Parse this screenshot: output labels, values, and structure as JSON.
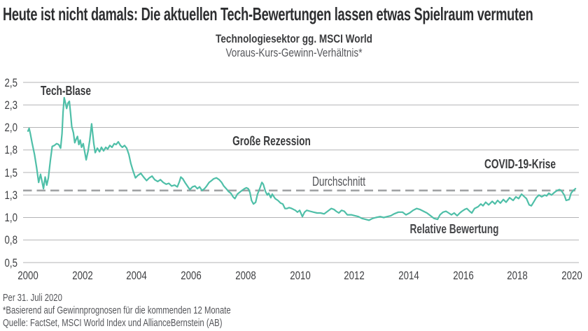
{
  "title": "Heute ist nicht damals: Die aktuellen Tech-Bewertungen lassen etwas Spielraum vermuten",
  "subtitle": {
    "line1": "Technologiesektor gg. MSCI World",
    "line2": "Voraus-Kurs-Gewinn-Verhältnis*"
  },
  "annotations": {
    "tech_bubble": "Tech-Blase",
    "great_recession": "Große Rezession",
    "covid": "COVID-19-Krise",
    "average": "Durchschnitt",
    "series": "Relative Bewertung"
  },
  "footer": {
    "as_of": "Per 31. Juli 2020",
    "note": "*Basierend auf Gewinnprognosen für die kommenden 12 Monate",
    "source": "Quelle: FactSet, MSCI World Index und AllianceBernstein (AB)"
  },
  "colors": {
    "line": "#4FBFA8",
    "grid": "#B3B3B5",
    "dashed": "#A0A2A4",
    "text_dark": "#3A3B3D",
    "text_gray": "#55565A"
  },
  "chart_data": {
    "type": "line",
    "title": "Technologiesektor gg. MSCI World",
    "subtitle": "Voraus-Kurs-Gewinn-Verhältnis (Relative Bewertung)",
    "xlabel": "",
    "ylabel": "",
    "xlim": [
      2000,
      2020.58
    ],
    "ylim": [
      0.5,
      2.5
    ],
    "grid": "horizontal",
    "legend_position": "none",
    "average_value": 1.3,
    "y_ticks": [
      {
        "label": "2,5",
        "value": 2.5
      },
      {
        "label": "2,3",
        "value": 2.25
      },
      {
        "label": "2,0",
        "value": 2.0
      },
      {
        "label": "1,8",
        "value": 1.75
      },
      {
        "label": "1,5",
        "value": 1.5
      },
      {
        "label": "1,3",
        "value": 1.25
      },
      {
        "label": "1,0",
        "value": 1.0
      },
      {
        "label": "0,8",
        "value": 0.75
      },
      {
        "label": "0,5",
        "value": 0.5
      }
    ],
    "x_ticks": [
      {
        "label": "2000",
        "year": 2000
      },
      {
        "label": "2002",
        "year": 2002
      },
      {
        "label": "2004",
        "year": 2004
      },
      {
        "label": "2006",
        "year": 2006
      },
      {
        "label": "2008",
        "year": 2008
      },
      {
        "label": "2010",
        "year": 2010
      },
      {
        "label": "2012",
        "year": 2012
      },
      {
        "label": "2014",
        "year": 2014
      },
      {
        "label": "2016",
        "year": 2016
      },
      {
        "label": "2018",
        "year": 2018
      },
      {
        "label": "2020",
        "year": 2020
      }
    ],
    "series": [
      {
        "name": "Relative Bewertung",
        "points": [
          [
            2000.0,
            1.96
          ],
          [
            2000.04,
            1.99
          ],
          [
            2000.08,
            1.94
          ],
          [
            2000.15,
            1.83
          ],
          [
            2000.24,
            1.7
          ],
          [
            2000.32,
            1.55
          ],
          [
            2000.39,
            1.39
          ],
          [
            2000.46,
            1.48
          ],
          [
            2000.51,
            1.41
          ],
          [
            2000.57,
            1.32
          ],
          [
            2000.63,
            1.45
          ],
          [
            2000.69,
            1.36
          ],
          [
            2000.75,
            1.44
          ],
          [
            2000.82,
            1.63
          ],
          [
            2000.89,
            1.79
          ],
          [
            2000.97,
            1.8
          ],
          [
            2001.05,
            1.82
          ],
          [
            2001.13,
            1.81
          ],
          [
            2001.2,
            1.77
          ],
          [
            2001.25,
            1.93
          ],
          [
            2001.29,
            2.17
          ],
          [
            2001.33,
            2.33
          ],
          [
            2001.38,
            2.27
          ],
          [
            2001.42,
            2.21
          ],
          [
            2001.47,
            2.27
          ],
          [
            2001.52,
            2.29
          ],
          [
            2001.57,
            2.14
          ],
          [
            2001.61,
            2.01
          ],
          [
            2001.67,
            1.94
          ],
          [
            2001.72,
            1.83
          ],
          [
            2001.77,
            1.87
          ],
          [
            2001.82,
            1.9
          ],
          [
            2001.87,
            1.81
          ],
          [
            2001.92,
            1.86
          ],
          [
            2001.97,
            1.78
          ],
          [
            2002.03,
            1.82
          ],
          [
            2002.14,
            1.64
          ],
          [
            2002.21,
            1.74
          ],
          [
            2002.27,
            1.86
          ],
          [
            2002.34,
            2.04
          ],
          [
            2002.42,
            1.82
          ],
          [
            2002.47,
            1.72
          ],
          [
            2002.55,
            1.77
          ],
          [
            2002.63,
            1.73
          ],
          [
            2002.7,
            1.78
          ],
          [
            2002.78,
            1.74
          ],
          [
            2002.86,
            1.78
          ],
          [
            2002.93,
            1.76
          ],
          [
            2003.01,
            1.8
          ],
          [
            2003.09,
            1.78
          ],
          [
            2003.17,
            1.82
          ],
          [
            2003.24,
            1.81
          ],
          [
            2003.32,
            1.84
          ],
          [
            2003.4,
            1.8
          ],
          [
            2003.47,
            1.78
          ],
          [
            2003.55,
            1.8
          ],
          [
            2003.63,
            1.77
          ],
          [
            2003.71,
            1.7
          ],
          [
            2003.78,
            1.6
          ],
          [
            2003.86,
            1.52
          ],
          [
            2003.95,
            1.44
          ],
          [
            2004.05,
            1.47
          ],
          [
            2004.15,
            1.49
          ],
          [
            2004.25,
            1.45
          ],
          [
            2004.36,
            1.41
          ],
          [
            2004.46,
            1.44
          ],
          [
            2004.56,
            1.46
          ],
          [
            2004.66,
            1.42
          ],
          [
            2004.77,
            1.4
          ],
          [
            2004.87,
            1.42
          ],
          [
            2004.97,
            1.39
          ],
          [
            2005.08,
            1.37
          ],
          [
            2005.18,
            1.38
          ],
          [
            2005.28,
            1.35
          ],
          [
            2005.39,
            1.36
          ],
          [
            2005.49,
            1.34
          ],
          [
            2005.57,
            1.4
          ],
          [
            2005.62,
            1.45
          ],
          [
            2005.69,
            1.43
          ],
          [
            2005.77,
            1.39
          ],
          [
            2005.86,
            1.35
          ],
          [
            2005.95,
            1.31
          ],
          [
            2006.05,
            1.34
          ],
          [
            2006.14,
            1.35
          ],
          [
            2006.23,
            1.32
          ],
          [
            2006.31,
            1.34
          ],
          [
            2006.4,
            1.3
          ],
          [
            2006.49,
            1.32
          ],
          [
            2006.57,
            1.35
          ],
          [
            2006.66,
            1.39
          ],
          [
            2006.75,
            1.41
          ],
          [
            2006.83,
            1.43
          ],
          [
            2006.93,
            1.44
          ],
          [
            2007.03,
            1.42
          ],
          [
            2007.12,
            1.39
          ],
          [
            2007.2,
            1.35
          ],
          [
            2007.29,
            1.32
          ],
          [
            2007.37,
            1.29
          ],
          [
            2007.46,
            1.27
          ],
          [
            2007.54,
            1.23
          ],
          [
            2007.61,
            1.21
          ],
          [
            2007.7,
            1.26
          ],
          [
            2007.78,
            1.28
          ],
          [
            2007.87,
            1.3
          ],
          [
            2007.96,
            1.32
          ],
          [
            2008.03,
            1.33
          ],
          [
            2008.1,
            1.32
          ],
          [
            2008.16,
            1.28
          ],
          [
            2008.22,
            1.19
          ],
          [
            2008.29,
            1.15
          ],
          [
            2008.37,
            1.17
          ],
          [
            2008.44,
            1.26
          ],
          [
            2008.52,
            1.32
          ],
          [
            2008.6,
            1.39
          ],
          [
            2008.65,
            1.37
          ],
          [
            2008.73,
            1.29
          ],
          [
            2008.8,
            1.25
          ],
          [
            2008.85,
            1.27
          ],
          [
            2008.93,
            1.22
          ],
          [
            2008.98,
            1.26
          ],
          [
            2009.09,
            1.21
          ],
          [
            2009.19,
            1.19
          ],
          [
            2009.29,
            1.16
          ],
          [
            2009.37,
            1.15
          ],
          [
            2009.45,
            1.1
          ],
          [
            2009.52,
            1.1
          ],
          [
            2009.6,
            1.11
          ],
          [
            2009.7,
            1.1
          ],
          [
            2009.83,
            1.08
          ],
          [
            2009.91,
            1.06
          ],
          [
            2009.99,
            1.08
          ],
          [
            2010.09,
            1.01
          ],
          [
            2010.17,
            1.06
          ],
          [
            2010.25,
            1.08
          ],
          [
            2010.37,
            1.07
          ],
          [
            2010.5,
            1.06
          ],
          [
            2010.63,
            1.05
          ],
          [
            2010.76,
            1.05
          ],
          [
            2010.89,
            1.04
          ],
          [
            2011.02,
            1.07
          ],
          [
            2011.15,
            1.1
          ],
          [
            2011.25,
            1.09
          ],
          [
            2011.33,
            1.07
          ],
          [
            2011.43,
            1.05
          ],
          [
            2011.53,
            1.08
          ],
          [
            2011.63,
            1.07
          ],
          [
            2011.74,
            1.03
          ],
          [
            2011.89,
            1.03
          ],
          [
            2012.02,
            1.02
          ],
          [
            2012.15,
            1.01
          ],
          [
            2012.28,
            0.99
          ],
          [
            2012.41,
            0.98
          ],
          [
            2012.54,
            0.97
          ],
          [
            2012.67,
            0.99
          ],
          [
            2012.79,
            1.0
          ],
          [
            2012.95,
            1.01
          ],
          [
            2013.08,
            1.0
          ],
          [
            2013.21,
            1.01
          ],
          [
            2013.34,
            1.02
          ],
          [
            2013.46,
            1.04
          ],
          [
            2013.62,
            1.06
          ],
          [
            2013.77,
            1.06
          ],
          [
            2013.9,
            1.03
          ],
          [
            2014.03,
            1.05
          ],
          [
            2014.16,
            1.08
          ],
          [
            2014.29,
            1.1
          ],
          [
            2014.41,
            1.09
          ],
          [
            2014.54,
            1.07
          ],
          [
            2014.67,
            1.05
          ],
          [
            2014.8,
            1.02
          ],
          [
            2014.93,
            0.99
          ],
          [
            2015.06,
            0.98
          ],
          [
            2015.15,
            1.03
          ],
          [
            2015.26,
            1.06
          ],
          [
            2015.37,
            1.07
          ],
          [
            2015.47,
            1.05
          ],
          [
            2015.57,
            1.03
          ],
          [
            2015.67,
            1.05
          ],
          [
            2015.78,
            1.02
          ],
          [
            2015.88,
            1.05
          ],
          [
            2015.96,
            1.07
          ],
          [
            2016.06,
            1.09
          ],
          [
            2016.14,
            1.1
          ],
          [
            2016.24,
            1.07
          ],
          [
            2016.32,
            1.05
          ],
          [
            2016.42,
            1.1
          ],
          [
            2016.55,
            1.12
          ],
          [
            2016.65,
            1.15
          ],
          [
            2016.73,
            1.13
          ],
          [
            2016.83,
            1.17
          ],
          [
            2016.94,
            1.14
          ],
          [
            2017.07,
            1.18
          ],
          [
            2017.17,
            1.15
          ],
          [
            2017.27,
            1.19
          ],
          [
            2017.37,
            1.16
          ],
          [
            2017.48,
            1.2
          ],
          [
            2017.58,
            1.17
          ],
          [
            2017.71,
            1.22
          ],
          [
            2017.84,
            1.19
          ],
          [
            2017.94,
            1.23
          ],
          [
            2018.04,
            1.21
          ],
          [
            2018.15,
            1.26
          ],
          [
            2018.22,
            1.24
          ],
          [
            2018.33,
            1.21
          ],
          [
            2018.43,
            1.14
          ],
          [
            2018.51,
            1.13
          ],
          [
            2018.61,
            1.18
          ],
          [
            2018.69,
            1.22
          ],
          [
            2018.79,
            1.25
          ],
          [
            2018.89,
            1.23
          ],
          [
            2019.0,
            1.25
          ],
          [
            2019.07,
            1.24
          ],
          [
            2019.15,
            1.27
          ],
          [
            2019.25,
            1.25
          ],
          [
            2019.36,
            1.28
          ],
          [
            2019.46,
            1.3
          ],
          [
            2019.54,
            1.31
          ],
          [
            2019.61,
            1.3
          ],
          [
            2019.72,
            1.25
          ],
          [
            2019.79,
            1.19
          ],
          [
            2019.9,
            1.2
          ],
          [
            2019.97,
            1.27
          ],
          [
            2020.05,
            1.3
          ],
          [
            2020.13,
            1.32
          ]
        ]
      }
    ]
  }
}
